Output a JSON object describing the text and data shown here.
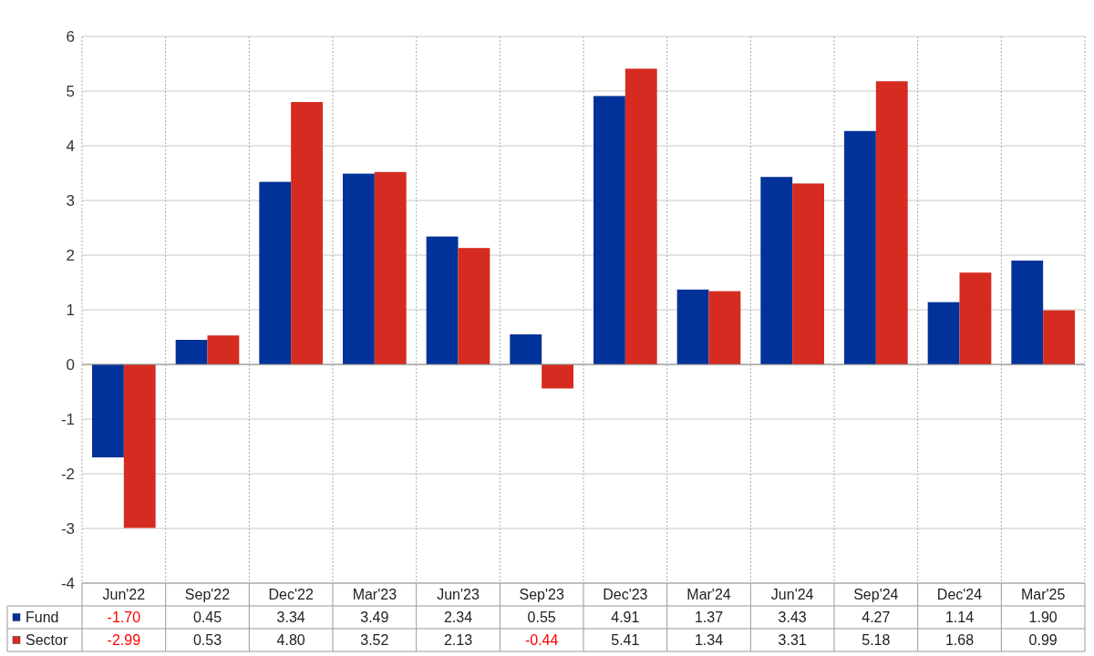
{
  "chart_data": {
    "type": "bar",
    "categories": [
      "Jun'22",
      "Sep'22",
      "Dec'22",
      "Mar'23",
      "Jun'23",
      "Sep'23",
      "Dec'23",
      "Mar'24",
      "Jun'24",
      "Sep'24",
      "Dec'24",
      "Mar'25"
    ],
    "series": [
      {
        "name": "Fund",
        "color": "#003299",
        "values": [
          -1.7,
          0.45,
          3.34,
          3.49,
          2.34,
          0.55,
          4.91,
          1.37,
          3.43,
          4.27,
          1.14,
          1.9
        ],
        "value_labels": [
          "-1.70",
          "0.45",
          "3.34",
          "3.49",
          "2.34",
          "0.55",
          "4.91",
          "1.37",
          "3.43",
          "4.27",
          "1.14",
          "1.90"
        ]
      },
      {
        "name": "Sector",
        "color": "#d62b20",
        "values": [
          -2.99,
          0.53,
          4.8,
          3.52,
          2.13,
          -0.44,
          5.41,
          1.34,
          3.31,
          5.18,
          1.68,
          0.99
        ],
        "value_labels": [
          "-2.99",
          "0.53",
          "4.80",
          "3.52",
          "2.13",
          "-0.44",
          "5.41",
          "1.34",
          "3.31",
          "5.18",
          "1.68",
          "0.99"
        ]
      }
    ],
    "ylim": [
      -4,
      6
    ],
    "yticks": [
      -4,
      -3,
      -2,
      -1,
      0,
      1,
      2,
      3,
      4,
      5,
      6
    ],
    "grid": true,
    "legend": "bottom"
  }
}
